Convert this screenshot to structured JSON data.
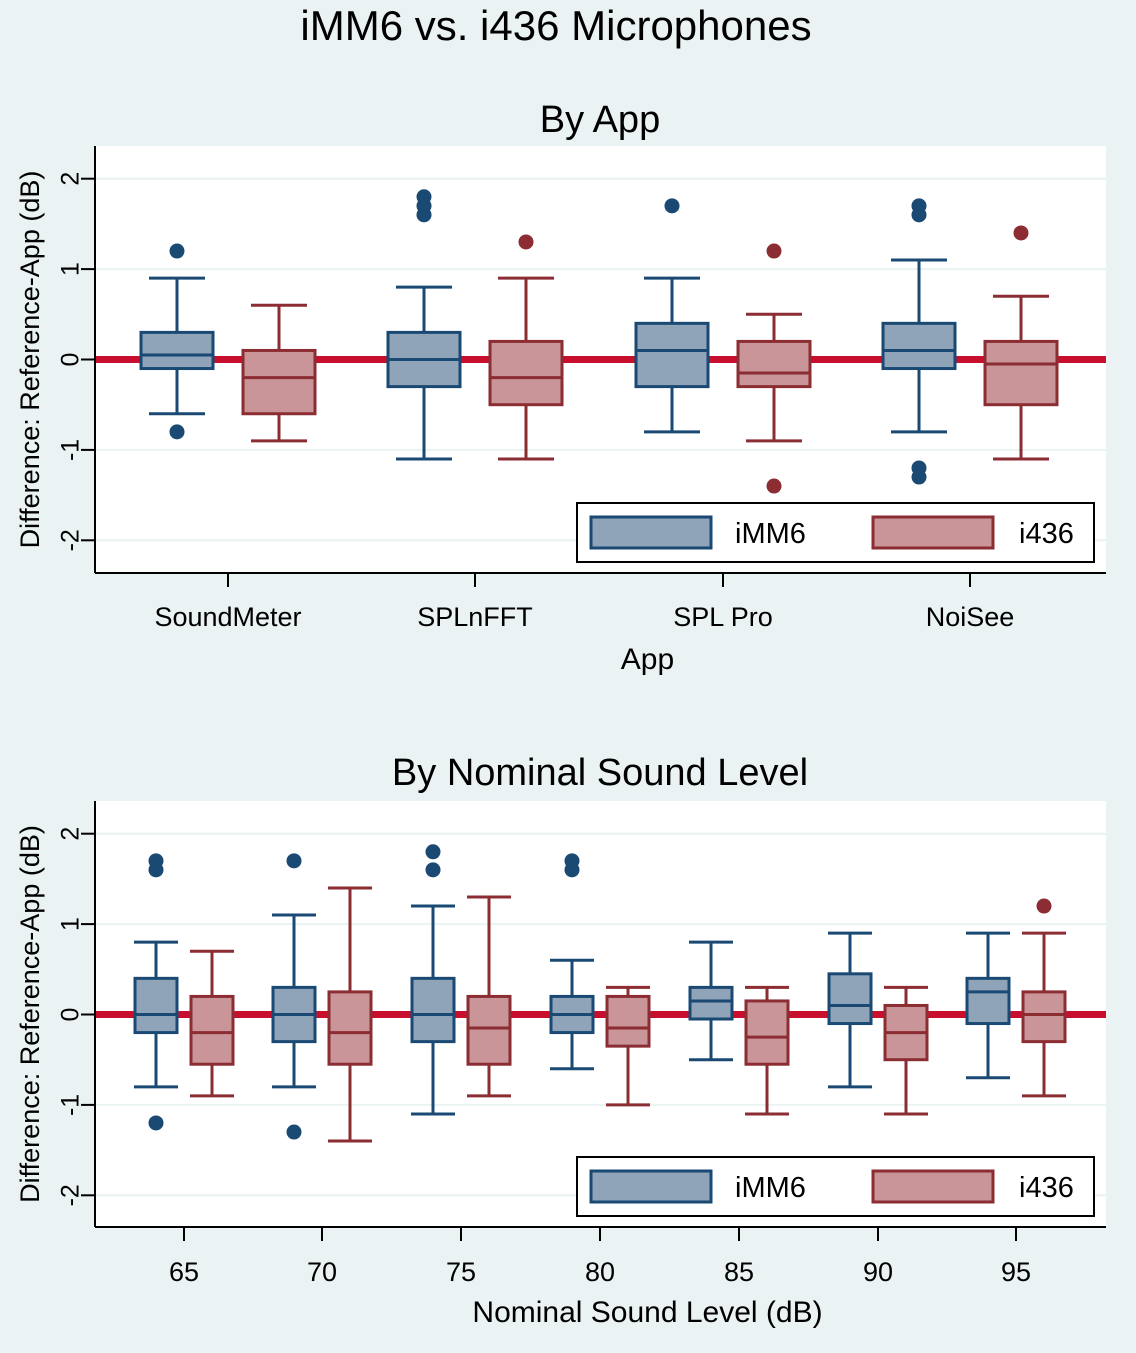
{
  "figure_title": "iMM6 vs. i436 Microphones",
  "colors": {
    "background": "#eaf2f3",
    "plot_bg": "#ffffff",
    "grid": "#eaf2f3",
    "reference_line": "#c8102e",
    "imm6_fill": "#8fa3b9",
    "imm6_stroke": "#1a4a73",
    "i436_fill": "#c99598",
    "i436_stroke": "#8b2d33"
  },
  "chart_data": [
    {
      "type": "box",
      "title": "By App",
      "xlabel": "App",
      "ylabel": "Difference: Reference-App (dB)",
      "ylim": [
        -2.4,
        2.35
      ],
      "yticks": [
        "-2",
        "-1",
        "0",
        "1",
        "2"
      ],
      "grid": true,
      "reference_line_y": 0,
      "categories": [
        "SoundMeter",
        "SPLnFFT",
        "SPL Pro",
        "NoiSee"
      ],
      "legend": {
        "placement": "bottom-right",
        "entries": [
          "iMM6",
          "i436"
        ]
      },
      "series": [
        {
          "name": "iMM6",
          "boxes": [
            {
              "q1": -0.1,
              "median": 0.05,
              "q3": 0.3,
              "whisker_low": -0.6,
              "whisker_high": 0.9,
              "outliers": [
                1.2,
                -0.8
              ]
            },
            {
              "q1": -0.3,
              "median": 0.0,
              "q3": 0.3,
              "whisker_low": -1.1,
              "whisker_high": 0.8,
              "outliers": [
                1.8,
                1.7,
                1.6
              ]
            },
            {
              "q1": -0.3,
              "median": 0.1,
              "q3": 0.4,
              "whisker_low": -0.8,
              "whisker_high": 0.9,
              "outliers": [
                1.7
              ]
            },
            {
              "q1": -0.1,
              "median": 0.1,
              "q3": 0.4,
              "whisker_low": -0.8,
              "whisker_high": 1.1,
              "outliers": [
                1.7,
                1.6,
                -1.2,
                -1.3
              ]
            }
          ]
        },
        {
          "name": "i436",
          "boxes": [
            {
              "q1": -0.6,
              "median": -0.2,
              "q3": 0.1,
              "whisker_low": -0.9,
              "whisker_high": 0.6,
              "outliers": []
            },
            {
              "q1": -0.5,
              "median": -0.2,
              "q3": 0.2,
              "whisker_low": -1.1,
              "whisker_high": 0.9,
              "outliers": [
                1.3
              ]
            },
            {
              "q1": -0.3,
              "median": -0.15,
              "q3": 0.2,
              "whisker_low": -0.9,
              "whisker_high": 0.5,
              "outliers": [
                1.2,
                -1.4
              ]
            },
            {
              "q1": -0.5,
              "median": -0.05,
              "q3": 0.2,
              "whisker_low": -1.1,
              "whisker_high": 0.7,
              "outliers": [
                1.4
              ]
            }
          ]
        }
      ]
    },
    {
      "type": "box",
      "title": "By Nominal Sound Level",
      "xlabel": "Nominal Sound Level (dB)",
      "ylabel": "Difference: Reference-App (dB)",
      "ylim": [
        -2.4,
        2.35
      ],
      "yticks": [
        "-2",
        "-1",
        "0",
        "1",
        "2"
      ],
      "grid": true,
      "reference_line_y": 0,
      "categories": [
        "65",
        "70",
        "75",
        "80",
        "85",
        "90",
        "95"
      ],
      "legend": {
        "placement": "bottom-right",
        "entries": [
          "iMM6",
          "i436"
        ]
      },
      "series": [
        {
          "name": "iMM6",
          "boxes": [
            {
              "q1": -0.2,
              "median": 0.0,
              "q3": 0.4,
              "whisker_low": -0.8,
              "whisker_high": 0.8,
              "outliers": [
                1.7,
                1.6,
                -1.2
              ]
            },
            {
              "q1": -0.3,
              "median": 0.0,
              "q3": 0.3,
              "whisker_low": -0.8,
              "whisker_high": 1.1,
              "outliers": [
                1.7,
                -1.3
              ]
            },
            {
              "q1": -0.3,
              "median": 0.0,
              "q3": 0.4,
              "whisker_low": -1.1,
              "whisker_high": 1.2,
              "outliers": [
                1.8,
                1.6
              ]
            },
            {
              "q1": -0.2,
              "median": 0.0,
              "q3": 0.2,
              "whisker_low": -0.6,
              "whisker_high": 0.6,
              "outliers": [
                1.7,
                1.6
              ]
            },
            {
              "q1": -0.05,
              "median": 0.15,
              "q3": 0.3,
              "whisker_low": -0.5,
              "whisker_high": 0.8,
              "outliers": []
            },
            {
              "q1": -0.1,
              "median": 0.1,
              "q3": 0.45,
              "whisker_low": -0.8,
              "whisker_high": 0.9,
              "outliers": []
            },
            {
              "q1": -0.1,
              "median": 0.25,
              "q3": 0.4,
              "whisker_low": -0.7,
              "whisker_high": 0.9,
              "outliers": []
            }
          ]
        },
        {
          "name": "i436",
          "boxes": [
            {
              "q1": -0.55,
              "median": -0.2,
              "q3": 0.2,
              "whisker_low": -0.9,
              "whisker_high": 0.7,
              "outliers": []
            },
            {
              "q1": -0.55,
              "median": -0.2,
              "q3": 0.25,
              "whisker_low": -1.4,
              "whisker_high": 1.4,
              "outliers": []
            },
            {
              "q1": -0.55,
              "median": -0.15,
              "q3": 0.2,
              "whisker_low": -0.9,
              "whisker_high": 1.3,
              "outliers": []
            },
            {
              "q1": -0.35,
              "median": -0.15,
              "q3": 0.2,
              "whisker_low": -1.0,
              "whisker_high": 0.3,
              "outliers": []
            },
            {
              "q1": -0.55,
              "median": -0.25,
              "q3": 0.15,
              "whisker_low": -1.1,
              "whisker_high": 0.3,
              "outliers": []
            },
            {
              "q1": -0.5,
              "median": -0.2,
              "q3": 0.1,
              "whisker_low": -1.1,
              "whisker_high": 0.3,
              "outliers": []
            },
            {
              "q1": -0.3,
              "median": 0.0,
              "q3": 0.25,
              "whisker_low": -0.9,
              "whisker_high": 0.9,
              "outliers": [
                1.2
              ]
            }
          ]
        }
      ]
    }
  ]
}
